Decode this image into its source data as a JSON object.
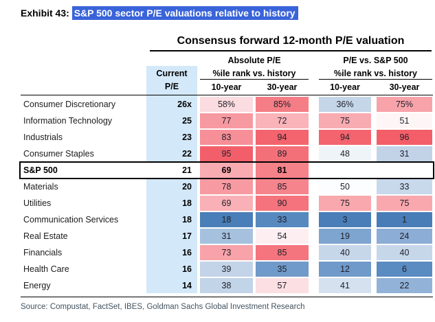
{
  "exhibit": {
    "label": "Exhibit 43:",
    "title": "S&P 500 sector P/E valuations relative to history"
  },
  "colors": {
    "title_highlight": "#3963d9",
    "current_column_bg": "#d3e8f8"
  },
  "table": {
    "title": "Consensus forward 12-month P/E valuation",
    "group_abs": "Absolute P/E",
    "group_rel": "P/E vs. S&P 500",
    "current_header_line1": "Current",
    "current_header_line2": "P/E",
    "pctile_header": "%ile rank vs. history",
    "col_10yr": "10-year",
    "col_30yr": "30-year",
    "rows": [
      {
        "sector": "Consumer Discretionary",
        "current_pe": "26x",
        "abs_10": "58%",
        "abs_30": "85%",
        "rel_10": "36%",
        "rel_30": "75%",
        "highlight": false,
        "colors": {
          "abs_10": "#fbdce0",
          "abs_30": "#f57d85",
          "rel_10": "#c5d6e9",
          "rel_30": "#f8a3aa"
        }
      },
      {
        "sector": "Information Technology",
        "current_pe": "25",
        "abs_10": "77",
        "abs_30": "72",
        "rel_10": "75",
        "rel_30": "51",
        "highlight": false,
        "colors": {
          "abs_10": "#f799a1",
          "abs_30": "#f9b3b9",
          "rel_10": "#f8abb1",
          "rel_30": "#fdf5f6"
        }
      },
      {
        "sector": "Industrials",
        "current_pe": "23",
        "abs_10": "83",
        "abs_30": "94",
        "rel_10": "94",
        "rel_30": "96",
        "highlight": false,
        "colors": {
          "abs_10": "#f68f97",
          "abs_30": "#f3646e",
          "rel_10": "#f3646e",
          "rel_30": "#f35e68"
        }
      },
      {
        "sector": "Consumer Staples",
        "current_pe": "22",
        "abs_10": "95",
        "abs_30": "89",
        "rel_10": "48",
        "rel_30": "31",
        "highlight": false,
        "colors": {
          "abs_10": "#f25f6a",
          "abs_30": "#f47079",
          "rel_10": "#eff4f9",
          "rel_30": "#c2d3e8"
        }
      },
      {
        "sector": "S&P 500",
        "current_pe": "21",
        "abs_10": "69",
        "abs_30": "81",
        "rel_10": "",
        "rel_30": "",
        "highlight": true,
        "colors": {
          "abs_10": "#f8abb1",
          "abs_30": "#f58189",
          "rel_10": "#ffffff",
          "rel_30": "#ffffff"
        }
      },
      {
        "sector": "Materials",
        "current_pe": "20",
        "abs_10": "78",
        "abs_30": "85",
        "rel_10": "50",
        "rel_30": "33",
        "highlight": false,
        "colors": {
          "abs_10": "#f79aa1",
          "abs_30": "#f5848c",
          "rel_10": "#fcfdfe",
          "rel_30": "#c9d9ec"
        }
      },
      {
        "sector": "Utilities",
        "current_pe": "18",
        "abs_10": "69",
        "abs_30": "90",
        "rel_10": "75",
        "rel_30": "75",
        "highlight": false,
        "colors": {
          "abs_10": "#f9b0b6",
          "abs_30": "#f4737c",
          "rel_10": "#f9a8ad",
          "rel_30": "#f9a8ad"
        }
      },
      {
        "sector": "Communication Services",
        "current_pe": "18",
        "abs_10": "18",
        "abs_30": "33",
        "rel_10": "3",
        "rel_30": "1",
        "highlight": false,
        "colors": {
          "abs_10": "#4a7eb8",
          "abs_30": "#5789bf",
          "rel_10": "#4a7eb8",
          "rel_30": "#497db7"
        }
      },
      {
        "sector": "Real Estate",
        "current_pe": "17",
        "abs_10": "31",
        "abs_30": "54",
        "rel_10": "19",
        "rel_30": "24",
        "highlight": false,
        "colors": {
          "abs_10": "#a5c1de",
          "abs_30": "#fdeff1",
          "rel_10": "#7ea5d0",
          "rel_30": "#8cadd5"
        }
      },
      {
        "sector": "Financials",
        "current_pe": "16",
        "abs_10": "73",
        "abs_30": "85",
        "rel_10": "40",
        "rel_30": "40",
        "highlight": false,
        "colors": {
          "abs_10": "#f8a2a9",
          "abs_30": "#f4757e",
          "rel_10": "#c7d7ea",
          "rel_30": "#c7d7ea"
        }
      },
      {
        "sector": "Health Care",
        "current_pe": "16",
        "abs_10": "39",
        "abs_30": "35",
        "rel_10": "12",
        "rel_30": "6",
        "highlight": false,
        "colors": {
          "abs_10": "#c3d4e8",
          "abs_30": "#6f9ac9",
          "rel_10": "#6f9ac9",
          "rel_30": "#5a8bc1"
        }
      },
      {
        "sector": "Energy",
        "current_pe": "14",
        "abs_10": "38",
        "abs_30": "57",
        "rel_10": "41",
        "rel_30": "22",
        "highlight": false,
        "colors": {
          "abs_10": "#c2d4e8",
          "abs_30": "#fbdfe2",
          "rel_10": "#d5e1ef",
          "rel_30": "#92b2d8"
        }
      }
    ]
  },
  "source": "Source: Compustat, FactSet, IBES, Goldman Sachs Global Investment Research",
  "chart_data": {
    "type": "heatmap",
    "title": "Consensus forward 12-month P/E valuation",
    "subtitle": "S&P 500 sector P/E valuations relative to history",
    "column_groups": [
      "Absolute P/E %ile rank vs. history",
      "P/E vs. S&P 500 %ile rank vs. history"
    ],
    "columns": [
      "Current P/E",
      "Absolute 10-year %ile",
      "Absolute 30-year %ile",
      "Relative 10-year %ile",
      "Relative 30-year %ile"
    ],
    "categories": [
      "Consumer Discretionary",
      "Information Technology",
      "Industrials",
      "Consumer Staples",
      "S&P 500",
      "Materials",
      "Utilities",
      "Communication Services",
      "Real Estate",
      "Financials",
      "Health Care",
      "Energy"
    ],
    "series": [
      {
        "name": "Current P/E",
        "values": [
          26,
          25,
          23,
          22,
          21,
          20,
          18,
          18,
          17,
          16,
          16,
          14
        ]
      },
      {
        "name": "Absolute 10-year %ile",
        "values": [
          58,
          77,
          83,
          95,
          69,
          78,
          69,
          18,
          31,
          73,
          39,
          38
        ]
      },
      {
        "name": "Absolute 30-year %ile",
        "values": [
          85,
          72,
          94,
          89,
          81,
          85,
          90,
          33,
          54,
          85,
          35,
          57
        ]
      },
      {
        "name": "P/E vs S&P 500 10-year %ile",
        "values": [
          36,
          75,
          94,
          48,
          null,
          50,
          75,
          3,
          19,
          40,
          12,
          41
        ]
      },
      {
        "name": "P/E vs S&P 500 30-year %ile",
        "values": [
          75,
          51,
          96,
          31,
          null,
          33,
          75,
          1,
          24,
          40,
          6,
          22
        ]
      }
    ],
    "color_scale": "diverging blue (low percentile) to white (50) to red (high percentile)",
    "legend_position": "none",
    "grid": false
  }
}
